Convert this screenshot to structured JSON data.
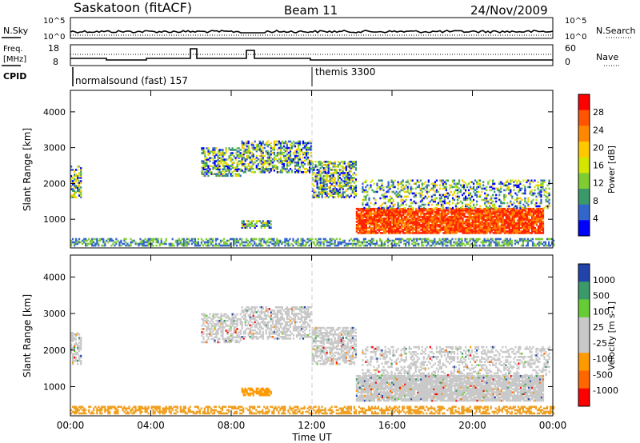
{
  "header": {
    "station": "Saskatoon (fitACF)",
    "beam": "Beam 11",
    "date": "24/Nov/2009"
  },
  "noise_panel": {
    "left_label": "N.Sky",
    "left_ticks": [
      "10^5",
      "10^0"
    ],
    "right_ticks": [
      "10^5",
      "10^0"
    ],
    "right_label": "N.Search"
  },
  "freq_panel": {
    "left_label_1": "Freq.",
    "left_label_2": "[MHz]",
    "left_ticks": [
      "18",
      "8"
    ],
    "right_ticks": [
      "60",
      "0"
    ],
    "right_label": "Nave"
  },
  "cpid": {
    "label": "CPID",
    "segments": [
      {
        "name": "normalsound (fast) 157",
        "start_hour": 0
      },
      {
        "name": "themis 3300",
        "start_hour": 12
      }
    ]
  },
  "chart_data": [
    {
      "type": "heatmap",
      "name": "power-panel",
      "ylabel": "Slant Range [km]",
      "xlabel": "Time UT",
      "x_ticks": [
        "00:00",
        "04:00",
        "08:00",
        "12:00",
        "16:00",
        "20:00",
        "00:00"
      ],
      "x_range_hours": [
        0,
        24
      ],
      "y_ticks": [
        "1000",
        "2000",
        "3000",
        "4000"
      ],
      "ylim": [
        200,
        4600
      ],
      "colorbar_label": "Power [dB]",
      "colorbar_ticks": [
        "28",
        "24",
        "20",
        "16",
        "12",
        "8",
        "4"
      ],
      "colors": [
        "#ff0000",
        "#ff5500",
        "#ff8800",
        "#ffc800",
        "#d4e600",
        "#7fcc33",
        "#3a9a6a",
        "#3366cc",
        "#0000ff"
      ],
      "marker_hour": 12
    },
    {
      "type": "heatmap",
      "name": "velocity-panel",
      "ylabel": "Slant Range [km]",
      "xlabel": "Time UT",
      "x_ticks": [
        "00:00",
        "04:00",
        "08:00",
        "12:00",
        "16:00",
        "20:00",
        "00:00"
      ],
      "x_range_hours": [
        0,
        24
      ],
      "y_ticks": [
        "1000",
        "2000",
        "3000",
        "4000"
      ],
      "ylim": [
        200,
        4600
      ],
      "colorbar_label": "Velocity [m s-1]",
      "colorbar_ticks": [
        "1000",
        "500",
        "100",
        "25",
        "-25",
        "-100",
        "-500",
        "-1000"
      ],
      "colors": [
        "#2244aa",
        "#3a9a6a",
        "#66cc33",
        "#c8c8c8",
        "#c8c8c8",
        "#ff9900",
        "#ff6600",
        "#ff0000"
      ],
      "marker_hour": 12
    }
  ],
  "xaxis_title": "Time UT"
}
